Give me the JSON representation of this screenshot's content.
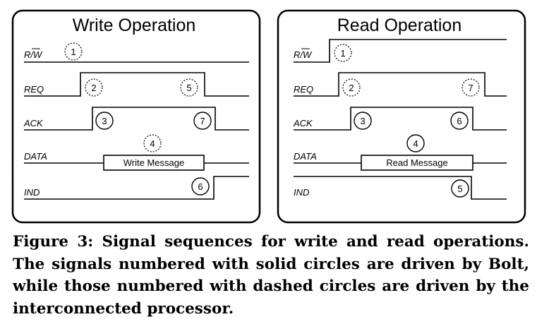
{
  "panels": [
    {
      "title": "Write Operation",
      "signals": [
        "R/W",
        "REQ",
        "ACK",
        "DATA",
        "IND"
      ],
      "message": "Write Message",
      "markers": [
        {
          "num": "1",
          "style": "dashed"
        },
        {
          "num": "2",
          "style": "dashed"
        },
        {
          "num": "5",
          "style": "dashed"
        },
        {
          "num": "3",
          "style": "solid"
        },
        {
          "num": "7",
          "style": "solid"
        },
        {
          "num": "4",
          "style": "dashed"
        },
        {
          "num": "6",
          "style": "solid"
        }
      ]
    },
    {
      "title": "Read Operation",
      "signals": [
        "R/W",
        "REQ",
        "ACK",
        "DATA",
        "IND"
      ],
      "message": "Read Message",
      "markers": [
        {
          "num": "1",
          "style": "dashed"
        },
        {
          "num": "2",
          "style": "dashed"
        },
        {
          "num": "7",
          "style": "dashed"
        },
        {
          "num": "3",
          "style": "solid"
        },
        {
          "num": "6",
          "style": "solid"
        },
        {
          "num": "4",
          "style": "solid"
        },
        {
          "num": "5",
          "style": "solid"
        }
      ]
    }
  ],
  "caption": "Figure 3: Signal sequences for write and read operations. The signals numbered with solid circles are driven by Bolt, while those numbered with dashed circles are driven by the interconnected processor."
}
